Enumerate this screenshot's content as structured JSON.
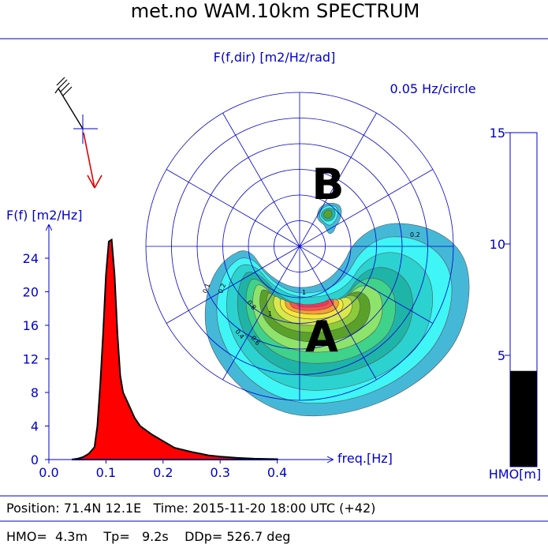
{
  "title": "met.no WAM.10km  SPECTRUM",
  "polar": {
    "label": "F(f,dir) [m2/Hz/rad]",
    "scale_label": "0.05 Hz/circle",
    "n_rings": 6,
    "n_spokes": 12,
    "peak_markers": [
      "A",
      "B"
    ],
    "contour_labels": [
      "0.1",
      "0.2",
      "0.2",
      "0.4",
      "0.6",
      "0.8",
      "1",
      "1"
    ]
  },
  "footer": {
    "position": "Position: 71.4N 12.1E   Time: 2015-11-20 18:00 UTC (+42)",
    "params": "HMO=  4.3m    Tp=   9.2s    DDp= 526.7 deg"
  },
  "colors": {
    "axis_blue": "#0000cc",
    "spectrum_fill": "#ff0000",
    "bar_fill": "#000000",
    "contour_levels": [
      "#45b8d8",
      "#3ff5f5",
      "#2bd2cf",
      "#1fb4a8",
      "#3fd28a",
      "#8ee36a",
      "#5aa12a",
      "#8ccc3a",
      "#d9e84a",
      "#f5e63a",
      "#f5a030",
      "#ff5050",
      "#ff3060"
    ]
  },
  "chart_data": [
    {
      "type": "area",
      "ylabel": "F(f) [m2/Hz]",
      "xlabel": "freq.[Hz]",
      "xlim": [
        0,
        0.45
      ],
      "ylim": [
        0,
        28
      ],
      "xticks": [
        "0.0",
        "0.1",
        "0.2",
        "0.3",
        "0.4"
      ],
      "yticks": [
        "0",
        "4",
        "8",
        "12",
        "16",
        "20",
        "24"
      ],
      "x": [
        0.04,
        0.05,
        0.06,
        0.07,
        0.08,
        0.085,
        0.09,
        0.095,
        0.1,
        0.105,
        0.11,
        0.115,
        0.12,
        0.125,
        0.13,
        0.14,
        0.15,
        0.16,
        0.18,
        0.2,
        0.22,
        0.25,
        0.28,
        0.3,
        0.33,
        0.36,
        0.4
      ],
      "values": [
        0,
        0.1,
        0.3,
        0.7,
        1.5,
        4,
        9,
        15,
        22,
        26,
        26.2,
        22,
        15,
        10,
        8,
        6.5,
        5,
        4,
        3,
        2.2,
        1.4,
        0.9,
        0.5,
        0.35,
        0.2,
        0.1,
        0.05
      ]
    },
    {
      "type": "bar",
      "ylabel": "HMO[m]",
      "ylim": [
        0,
        15
      ],
      "yticks": [
        "5",
        "10",
        "15"
      ],
      "values": [
        4.3
      ]
    }
  ]
}
